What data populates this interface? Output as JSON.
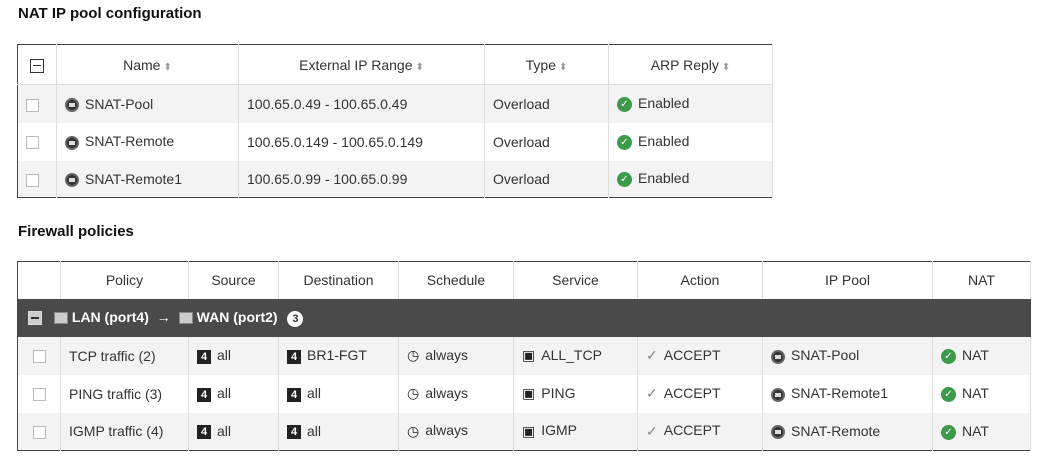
{
  "nat_pool": {
    "title": "NAT IP pool configuration",
    "columns": [
      "Name",
      "External IP Range",
      "Type",
      "ARP Reply"
    ],
    "rows": [
      {
        "name": "SNAT-Pool",
        "range": "100.65.0.49 - 100.65.0.49",
        "type": "Overload",
        "arp": "Enabled"
      },
      {
        "name": "SNAT-Remote",
        "range": "100.65.0.149 - 100.65.0.149",
        "type": "Overload",
        "arp": "Enabled"
      },
      {
        "name": "SNAT-Remote1",
        "range": "100.65.0.99 - 100.65.0.99",
        "type": "Overload",
        "arp": "Enabled"
      }
    ]
  },
  "policies": {
    "title": "Firewall policies",
    "columns": [
      "Policy",
      "Source",
      "Destination",
      "Schedule",
      "Service",
      "Action",
      "IP Pool",
      "NAT"
    ],
    "group": {
      "from": "LAN (port4)",
      "arrow": "→",
      "to": "WAN (port2)",
      "count": "3"
    },
    "rows": [
      {
        "policy": "TCP traffic (2)",
        "source": "all",
        "destination": "BR1-FGT",
        "schedule": "always",
        "service": "ALL_TCP",
        "action": "ACCEPT",
        "pool": "SNAT-Pool",
        "nat": "NAT"
      },
      {
        "policy": "PING traffic (3)",
        "source": "all",
        "destination": "all",
        "schedule": "always",
        "service": "PING",
        "action": "ACCEPT",
        "pool": "SNAT-Remote1",
        "nat": "NAT"
      },
      {
        "policy": "IGMP traffic (4)",
        "source": "all",
        "destination": "all",
        "schedule": "always",
        "service": "IGMP",
        "action": "ACCEPT",
        "pool": "SNAT-Remote",
        "nat": "NAT"
      }
    ]
  },
  "colors": {
    "enabled": "#3c9a4a",
    "group_bar": "#4a4a4a"
  }
}
